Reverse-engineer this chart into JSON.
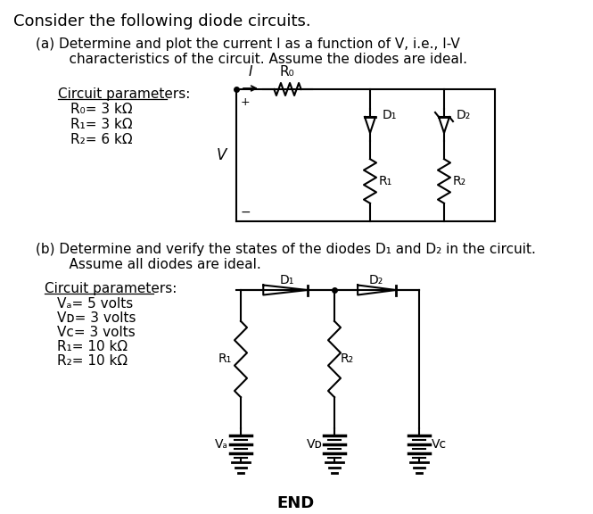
{
  "bg_color": "#ffffff",
  "title_text": "Consider the following diode circuits.",
  "part_a_line1": "(a) Determine and plot the current I as a function of V, i.e., I-V",
  "part_a_line2": "    characteristics of the circuit. Assume the diodes are ideal.",
  "part_a_params_title": "Circuit parameters:",
  "part_a_params": [
    "R₀= 3 kΩ",
    "R₁= 3 kΩ",
    "R₂= 6 kΩ"
  ],
  "part_b_line1": "(b) Determine and verify the states of the diodes D₁ and D₂ in the circuit.",
  "part_b_line2": "    Assume all diodes are ideal.",
  "part_b_params_title": "Circuit parameters:",
  "part_b_params": [
    "Vₐ= 5 volts",
    "Vᴅ= 3 volts",
    "Vᴄ= 3 volts",
    "R₁= 10 kΩ",
    "R₂= 10 kΩ"
  ],
  "end_text": "END",
  "font_size_title": 13,
  "font_size_body": 11,
  "font_size_small": 10
}
